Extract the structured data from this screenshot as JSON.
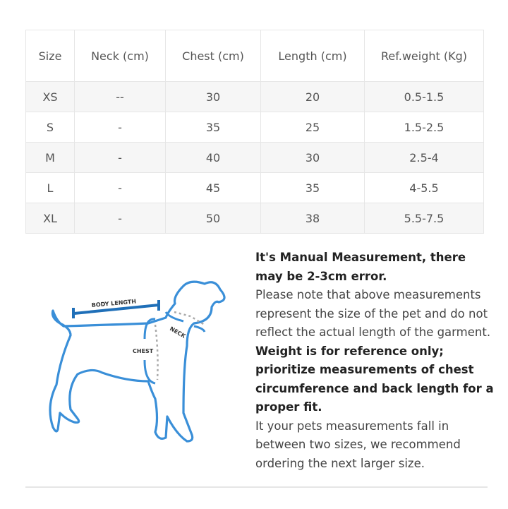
{
  "size_table": {
    "headers": [
      "Size",
      "Neck (cm)",
      "Chest (cm)",
      "Length (cm)",
      "Ref.weight (Kg)"
    ],
    "rows": [
      [
        "XS",
        "--",
        "30",
        "20",
        "0.5-1.5"
      ],
      [
        "S",
        "-",
        "35",
        "25",
        "1.5-2.5"
      ],
      [
        "M",
        "-",
        "40",
        "30",
        "2.5-4"
      ],
      [
        "L",
        "-",
        "45",
        "35",
        "4-5.5"
      ],
      [
        "XL",
        "-",
        "50",
        "38",
        "5.5-7.5"
      ]
    ]
  },
  "diagram": {
    "labels": {
      "body_length": "BODY LENGTH",
      "neck": "NECK",
      "chest": "CHEST"
    },
    "line_color": "#3a8fd8"
  },
  "notes": {
    "bold1": "It's Manual Measurement, there may be 2-3cm error.",
    "p1": "Please note that above measurements represent the size of the pet and do not reflect the actual length of the garment.",
    "bold2": "Weight is for reference only; prioritize measurements of chest circumference and back length for a proper fit.",
    "p2": "It your pets measurements fall in between two sizes, we recommend ordering the next larger size."
  }
}
